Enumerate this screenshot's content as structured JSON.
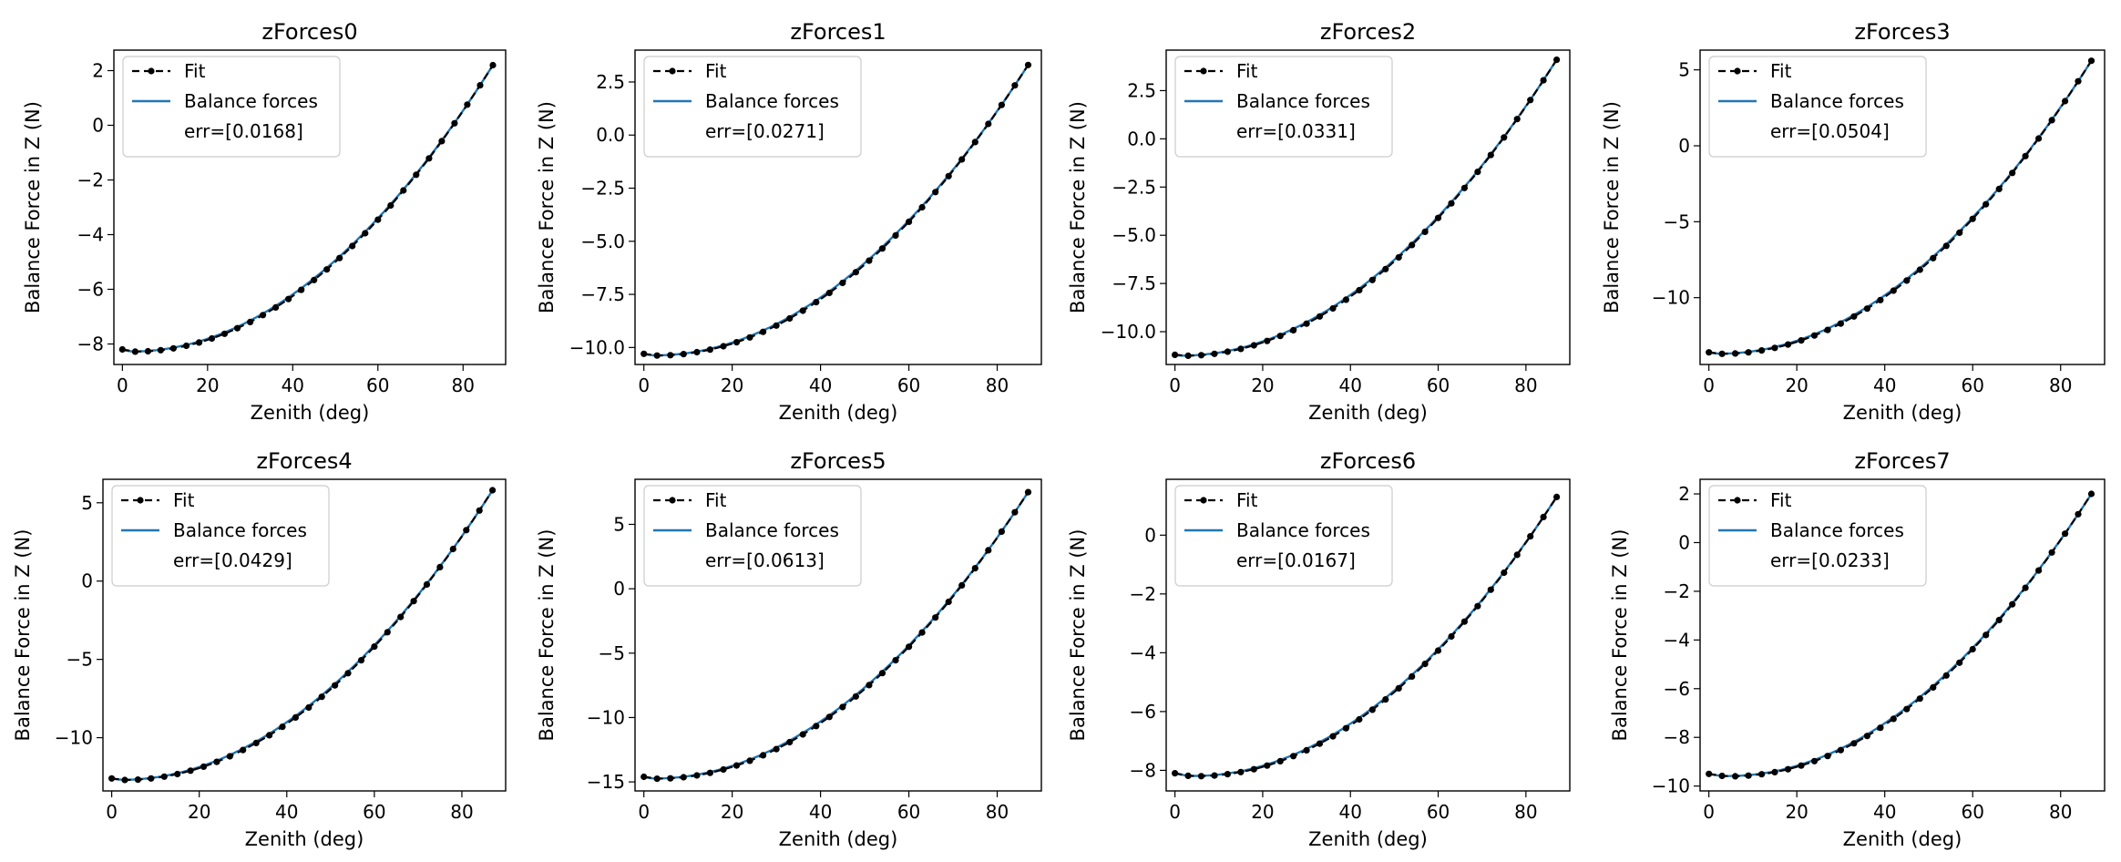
{
  "chart_data": [
    {
      "type": "line",
      "title": "zForces0",
      "xlabel": "Zenith (deg)",
      "ylabel": "Balance Force in Z (N)",
      "xlim": [
        -2,
        90
      ],
      "ylim": [
        -8.75,
        2.75
      ],
      "xticks": [
        0,
        20,
        40,
        60,
        80
      ],
      "yticks": [
        2,
        0,
        -2,
        -4,
        -6,
        -8
      ],
      "legend_position": "upper-left",
      "legend_entries": [
        "Fit",
        "Balance forces",
        "err=[0.0168]"
      ],
      "series": [
        {
          "name": "Fit",
          "style": "dashed black with dot markers"
        },
        {
          "name": "Balance forces",
          "style": "solid blue"
        }
      ],
      "curve": {
        "x0": 0,
        "x_end": 87,
        "y0": -8.2,
        "y_min": -8.28,
        "x_min": 3,
        "y_end": 2.2
      }
    },
    {
      "type": "line",
      "title": "zForces1",
      "xlabel": "Zenith (deg)",
      "ylabel": "Balance Force in Z (N)",
      "xlim": [
        -2,
        90
      ],
      "ylim": [
        -10.8,
        4.0
      ],
      "xticks": [
        0,
        20,
        40,
        60,
        80
      ],
      "yticks": [
        2.5,
        0.0,
        -2.5,
        -5.0,
        -7.5,
        -10.0
      ],
      "legend_position": "upper-left",
      "legend_entries": [
        "Fit",
        "Balance forces",
        "err=[0.0271]"
      ],
      "series": [
        {
          "name": "Fit",
          "style": "dashed black with dot markers"
        },
        {
          "name": "Balance forces",
          "style": "solid blue"
        }
      ],
      "curve": {
        "x0": 0,
        "x_end": 87,
        "y0": -10.3,
        "y_min": -10.38,
        "x_min": 3,
        "y_end": 3.3
      }
    },
    {
      "type": "line",
      "title": "zForces2",
      "xlabel": "Zenith (deg)",
      "ylabel": "Balance Force in Z (N)",
      "xlim": [
        -2,
        90
      ],
      "ylim": [
        -11.7,
        4.6
      ],
      "xticks": [
        0,
        20,
        40,
        60,
        80
      ],
      "yticks": [
        2.5,
        0.0,
        -2.5,
        -5.0,
        -7.5,
        -10.0
      ],
      "legend_position": "upper-left",
      "legend_entries": [
        "Fit",
        "Balance forces",
        "err=[0.0331]"
      ],
      "series": [
        {
          "name": "Fit",
          "style": "dashed black with dot markers"
        },
        {
          "name": "Balance forces",
          "style": "solid blue"
        }
      ],
      "curve": {
        "x0": 0,
        "x_end": 87,
        "y0": -11.2,
        "y_min": -11.25,
        "x_min": 2,
        "y_end": 4.1
      }
    },
    {
      "type": "line",
      "title": "zForces3",
      "xlabel": "Zenith (deg)",
      "ylabel": "Balance Force in Z (N)",
      "xlim": [
        -2,
        90
      ],
      "ylim": [
        -14.4,
        6.3
      ],
      "xticks": [
        0,
        20,
        40,
        60,
        80
      ],
      "yticks": [
        5,
        0,
        -5,
        -10
      ],
      "legend_position": "upper-left",
      "legend_entries": [
        "Fit",
        "Balance forces",
        "err=[0.0504]"
      ],
      "series": [
        {
          "name": "Fit",
          "style": "dashed black with dot markers"
        },
        {
          "name": "Balance forces",
          "style": "solid blue"
        }
      ],
      "curve": {
        "x0": 0,
        "x_end": 87,
        "y0": -13.6,
        "y_min": -13.7,
        "x_min": 3,
        "y_end": 5.6
      }
    },
    {
      "type": "line",
      "title": "zForces4",
      "xlabel": "Zenith (deg)",
      "ylabel": "Balance Force in Z (N)",
      "xlim": [
        -2,
        90
      ],
      "ylim": [
        -13.4,
        6.5
      ],
      "xticks": [
        0,
        20,
        40,
        60,
        80
      ],
      "yticks": [
        5,
        0,
        -5,
        -10
      ],
      "legend_position": "upper-left",
      "legend_entries": [
        "Fit",
        "Balance forces",
        "err=[0.0429]"
      ],
      "series": [
        {
          "name": "Fit",
          "style": "dashed black with dot markers"
        },
        {
          "name": "Balance forces",
          "style": "solid blue"
        }
      ],
      "curve": {
        "x0": 0,
        "x_end": 87,
        "y0": -12.6,
        "y_min": -12.7,
        "x_min": 3,
        "y_end": 5.8
      }
    },
    {
      "type": "line",
      "title": "zForces5",
      "xlabel": "Zenith (deg)",
      "ylabel": "Balance Force in Z (N)",
      "xlim": [
        -2,
        90
      ],
      "ylim": [
        -15.7,
        8.5
      ],
      "xticks": [
        0,
        20,
        40,
        60,
        80
      ],
      "yticks": [
        5,
        0,
        -5,
        -10,
        -15
      ],
      "legend_position": "upper-left",
      "legend_entries": [
        "Fit",
        "Balance forces",
        "err=[0.0613]"
      ],
      "series": [
        {
          "name": "Fit",
          "style": "dashed black with dot markers"
        },
        {
          "name": "Balance forces",
          "style": "solid blue"
        }
      ],
      "curve": {
        "x0": 0,
        "x_end": 87,
        "y0": -14.6,
        "y_min": -14.75,
        "x_min": 3,
        "y_end": 7.5
      }
    },
    {
      "type": "line",
      "title": "zForces6",
      "xlabel": "Zenith (deg)",
      "ylabel": "Balance Force in Z (N)",
      "xlim": [
        -2,
        90
      ],
      "ylim": [
        -8.7,
        1.9
      ],
      "xticks": [
        0,
        20,
        40,
        60,
        80
      ],
      "yticks": [
        0,
        -2,
        -4,
        -6,
        -8
      ],
      "legend_position": "upper-left",
      "legend_entries": [
        "Fit",
        "Balance forces",
        "err=[0.0167]"
      ],
      "series": [
        {
          "name": "Fit",
          "style": "dashed black with dot markers"
        },
        {
          "name": "Balance forces",
          "style": "solid blue"
        }
      ],
      "curve": {
        "x0": 0,
        "x_end": 87,
        "y0": -8.1,
        "y_min": -8.2,
        "x_min": 5,
        "y_end": 1.3
      }
    },
    {
      "type": "line",
      "title": "zForces7",
      "xlabel": "Zenith (deg)",
      "ylabel": "Balance Force in Z (N)",
      "xlim": [
        -2,
        90
      ],
      "ylim": [
        -10.2,
        2.6
      ],
      "xticks": [
        0,
        20,
        40,
        60,
        80
      ],
      "yticks": [
        2,
        0,
        -2,
        -4,
        -6,
        -8,
        -10
      ],
      "legend_position": "upper-left",
      "legend_entries": [
        "Fit",
        "Balance forces",
        "err=[0.0233]"
      ],
      "series": [
        {
          "name": "Fit",
          "style": "dashed black with dot markers"
        },
        {
          "name": "Balance forces",
          "style": "solid blue"
        }
      ],
      "curve": {
        "x0": 0,
        "x_end": 87,
        "y0": -9.5,
        "y_min": -9.6,
        "x_min": 5,
        "y_end": 2.0
      }
    }
  ],
  "colors": {
    "fit": "#000000",
    "balance": "#1f77b4",
    "legend_border": "#cccccc"
  },
  "icons": {
    "fit_marker": "dashed-line-with-dot-icon",
    "balance_marker": "solid-blue-line-icon"
  }
}
